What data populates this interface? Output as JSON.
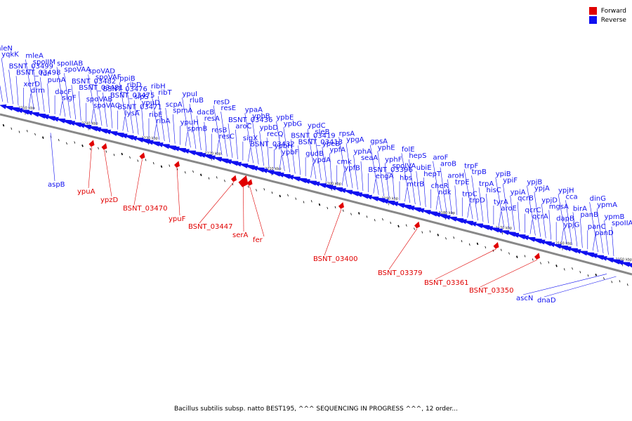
{
  "colors": {
    "forward": "#e00000",
    "reverse": "#1010f0",
    "axis": "#888888",
    "tick": "#000000"
  },
  "legend": {
    "forward_label": "Forward",
    "reverse_label": "Reverse"
  },
  "caption": "Bacillus subtilis subsp. natto BEST195, ^^^ SEQUENCING IN PROGRESS ^^^, 12 order...",
  "scale": {
    "start_kbp": 2256,
    "end_kbp": 2144,
    "ticks": [
      "2250 kbp",
      "2240 kbp",
      "2230 kbp",
      "2220 kbp",
      "2210 kbp",
      "2200 kbp",
      "2190 kbp",
      "2180 kbp",
      "2170 kbp",
      "2160 kbp",
      "2150 kbp"
    ]
  },
  "reverse_genes": [
    "mleN",
    "yqkK",
    "BSNT_03499",
    "BSNT_03498",
    "xerD",
    "drm",
    "mleA",
    "spoIIM",
    "fur",
    "punA",
    "dacF",
    "sigF",
    "spoIIAB",
    "spoVAA",
    "BSNT_03482",
    "BSNT_03481",
    "spoVAB",
    "spoVAC",
    "spoVAD",
    "spoVAF",
    "BSNT_03476",
    "BSNT_03475",
    "BSNT_03471",
    "lysA",
    "ppiB",
    "ribD",
    "sipS",
    "ypuD",
    "ribE",
    "ribA",
    "ribH",
    "ribT",
    "scpA",
    "spmA",
    "ypuH",
    "spmB",
    "ypuI",
    "rluB",
    "dacB",
    "resA",
    "resB",
    "resC",
    "resD",
    "resE",
    "BSNT_03436",
    "aroC",
    "sigX",
    "BSNT_03432",
    "ypaA",
    "ypbB",
    "ypbD",
    "recQ",
    "ypbH",
    "ypbF",
    "ypbE",
    "ypbG",
    "BSNT_03419",
    "BSNT_03413",
    "gudB",
    "ypdA",
    "ypdC",
    "sleB",
    "ypeB",
    "ypfA",
    "cmk",
    "ypfB",
    "rpsA",
    "ypgA",
    "yphA",
    "seaA",
    "BSNT_03396",
    "engA",
    "gpsA",
    "yphE",
    "yphF",
    "spoIVA",
    "hbs",
    "mtrB",
    "folE",
    "hepS",
    "ubiE",
    "hepT",
    "cheR",
    "ndk",
    "aroF",
    "aroB",
    "aroH",
    "trpE",
    "trpC",
    "trpD",
    "trpF",
    "trpB",
    "trpA",
    "hisC",
    "tyrA",
    "aroE",
    "ypiB",
    "ypiF",
    "ypiA",
    "qcrB",
    "qcrC",
    "qcrA",
    "ypjB",
    "ypjA",
    "ypjD",
    "mgsA",
    "dapB",
    "ypjG",
    "ypjH",
    "cca",
    "birA",
    "panB",
    "panC",
    "panD",
    "dinG",
    "ypmA",
    "ypmB",
    "spoIIAA",
    "aspB",
    "ascN",
    "dnaD"
  ],
  "forward_genes": [
    "ypuA",
    "ypzD",
    "BSNT_03470",
    "ypuF",
    "BSNT_03447",
    "serA",
    "fer",
    "BSNT_03400",
    "BSNT_03379",
    "BSNT_03361",
    "BSNT_03350"
  ]
}
